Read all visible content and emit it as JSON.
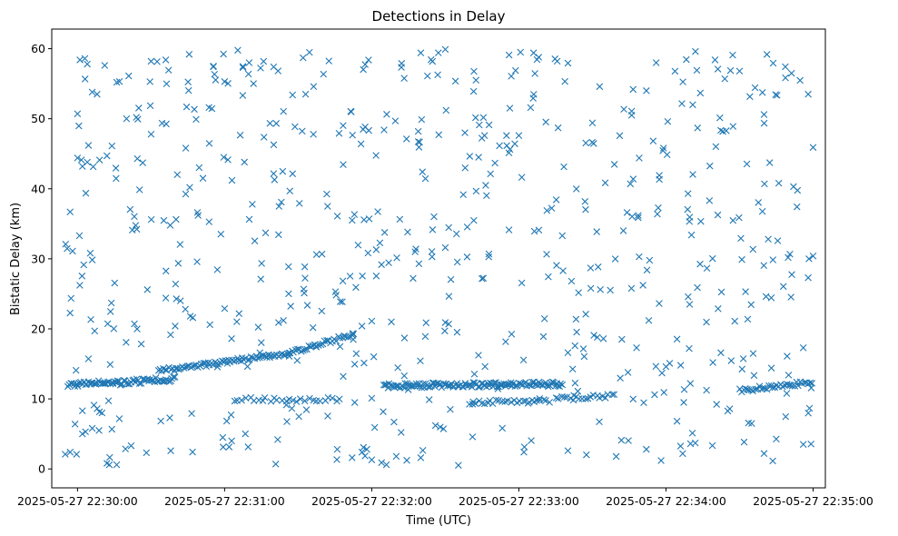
{
  "chart_data": {
    "type": "scatter",
    "title": "Detections in Delay",
    "xlabel": "Time (UTC)",
    "ylabel": "Bistatic Delay (km)",
    "x_unit": "seconds after 2025-05-27 22:30:00",
    "xlim": [
      -10.5,
      305
    ],
    "ylim": [
      -2.7,
      62.8
    ],
    "x_ticks": [
      0,
      60,
      120,
      180,
      240,
      300
    ],
    "x_tick_labels": [
      "2025-05-27 22:30:00",
      "2025-05-27 22:31:00",
      "2025-05-27 22:32:00",
      "2025-05-27 22:33:00",
      "2025-05-27 22:34:00",
      "2025-05-27 22:35:00"
    ],
    "y_ticks": [
      0,
      10,
      20,
      30,
      40,
      50,
      60
    ],
    "y_tick_labels": [
      "0",
      "10",
      "20",
      "30",
      "40",
      "50",
      "60"
    ],
    "marker": "x",
    "color": "#1f77b4",
    "grid": false,
    "tracks": [
      {
        "x_start": -4,
        "x_end": 40,
        "y_start": 12.0,
        "y_end": 12.8,
        "step": 0.6,
        "jitter": 0.35
      },
      {
        "x_start": 33,
        "x_end": 88,
        "y_start": 14.0,
        "y_end": 16.6,
        "step": 0.7,
        "jitter": 0.3
      },
      {
        "x_start": 88,
        "x_end": 113,
        "y_start": 16.7,
        "y_end": 19.3,
        "step": 0.8,
        "jitter": 0.3
      },
      {
        "x_start": 64,
        "x_end": 108,
        "y_start": 9.9,
        "y_end": 9.9,
        "step": 1.6,
        "jitter": 0.3
      },
      {
        "x_start": 125,
        "x_end": 198,
        "y_start": 11.9,
        "y_end": 12.1,
        "step": 0.55,
        "jitter": 0.35
      },
      {
        "x_start": 160,
        "x_end": 192,
        "y_start": 9.5,
        "y_end": 9.8,
        "step": 1.2,
        "jitter": 0.3
      },
      {
        "x_start": 195,
        "x_end": 220,
        "y_start": 10.1,
        "y_end": 10.5,
        "step": 1.2,
        "jitter": 0.3
      },
      {
        "x_start": 270,
        "x_end": 300,
        "y_start": 11.2,
        "y_end": 12.4,
        "step": 0.8,
        "jitter": 0.3
      }
    ],
    "scattered": {
      "count": 560,
      "x_range": [
        -5,
        300
      ],
      "y_range": [
        0.5,
        60
      ],
      "seed": 20250527
    },
    "points": [
      [
        -5,
        2.1
      ],
      [
        -3,
        2.4
      ],
      [
        -1,
        6.4
      ],
      [
        2,
        5.0
      ],
      [
        2,
        8.3
      ],
      [
        6,
        5.8
      ],
      [
        8,
        8.6
      ],
      [
        10,
        8.0
      ],
      [
        12,
        0.8
      ],
      [
        13,
        0.6
      ],
      [
        16,
        0.6
      ],
      [
        -3,
        36.7
      ],
      [
        -2,
        31.1
      ],
      [
        0,
        50.7
      ],
      [
        1,
        58.4
      ],
      [
        3,
        58.6
      ],
      [
        4,
        57.8
      ],
      [
        16,
        55.2
      ],
      [
        30,
        58.2
      ],
      [
        36,
        58.4
      ],
      [
        6,
        53.8
      ],
      [
        8,
        53.5
      ],
      [
        12,
        44.7
      ],
      [
        20,
        50.0
      ],
      [
        24,
        50.2
      ],
      [
        0,
        44.4
      ],
      [
        2,
        43.2
      ],
      [
        4,
        43.8
      ],
      [
        9,
        44.1
      ],
      [
        60,
        55.3
      ],
      [
        70,
        58.0
      ],
      [
        80,
        57.4
      ],
      [
        92,
        58.7
      ],
      [
        140,
        59.4
      ],
      [
        150,
        59.9
      ],
      [
        176,
        59.1
      ],
      [
        186,
        59.4
      ],
      [
        252,
        59.6
      ],
      [
        236,
        58.0
      ],
      [
        260,
        58.4
      ],
      [
        120,
        1.3
      ],
      [
        124,
        0.9
      ],
      [
        126,
        0.6
      ],
      [
        130,
        1.8
      ],
      [
        112,
        1.6
      ],
      [
        140,
        1.6
      ],
      [
        200,
        2.6
      ],
      [
        232,
        2.8
      ],
      [
        238,
        1.2
      ],
      [
        250,
        3.6
      ],
      [
        280,
        2.2
      ],
      [
        296,
        3.5
      ],
      [
        118,
        2.8
      ],
      [
        116,
        2.4
      ],
      [
        40,
        26.4
      ],
      [
        42,
        24.0
      ],
      [
        44,
        22.8
      ],
      [
        46,
        21.8
      ],
      [
        36,
        24.4
      ],
      [
        54,
        20.6
      ],
      [
        60,
        22.9
      ],
      [
        82,
        20.9
      ],
      [
        84,
        21.2
      ],
      [
        116,
        20.4
      ],
      [
        120,
        21.1
      ],
      [
        128,
        21.0
      ],
      [
        150,
        20.9
      ],
      [
        190,
        18.9
      ],
      [
        200,
        16.6
      ],
      [
        212,
        18.8
      ],
      [
        222,
        18.5
      ],
      [
        228,
        17.3
      ],
      [
        240,
        14.6
      ],
      [
        246,
        14.8
      ],
      [
        283,
        14.4
      ],
      [
        290,
        13.4
      ],
      [
        296,
        17.3
      ],
      [
        138,
        31.4
      ],
      [
        150,
        31.6
      ],
      [
        102,
        37.5
      ],
      [
        106,
        36.1
      ],
      [
        112,
        35.5
      ],
      [
        158,
        48.0
      ],
      [
        166,
        47.6
      ],
      [
        180,
        47.6
      ],
      [
        196,
        48.7
      ],
      [
        210,
        49.4
      ],
      [
        226,
        50.5
      ],
      [
        232,
        54.0
      ],
      [
        264,
        55.7
      ],
      [
        270,
        56.8
      ],
      [
        280,
        50.6
      ],
      [
        298,
        53.5
      ],
      [
        300,
        45.9
      ],
      [
        292,
        40.3
      ],
      [
        286,
        40.8
      ],
      [
        300,
        30.4
      ],
      [
        298,
        27.3
      ]
    ]
  }
}
